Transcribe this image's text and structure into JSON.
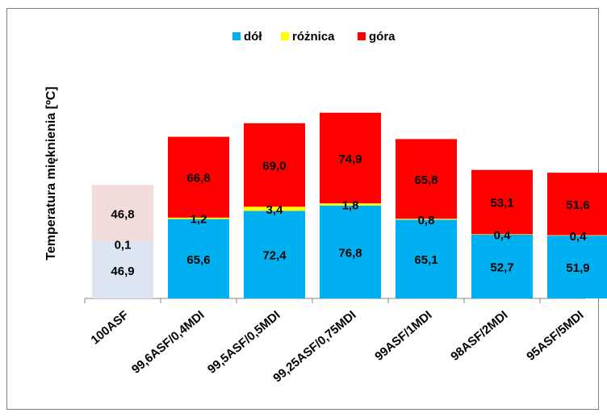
{
  "chart_data": {
    "type": "bar",
    "stacked": true,
    "ylabel": "Temperatura mięknienia [ºC]",
    "xlabel": "",
    "legend_position": "top",
    "grid": false,
    "categories": [
      "100ASF",
      "99,6ASF/0,4MDI",
      "99,5ASF/0,5MDI",
      "99,25ASF/0,75MDI",
      "99ASF/1MDI",
      "98ASF/2MDI",
      "95ASF/5MDI"
    ],
    "series": [
      {
        "name": "dół",
        "color": "#00b0f0",
        "values": [
          46.9,
          65.6,
          72.4,
          76.8,
          65.1,
          52.7,
          51.9
        ],
        "labels": [
          "46,9",
          "65,6",
          "72,4",
          "76,8",
          "65,1",
          "52,7",
          "51,9"
        ]
      },
      {
        "name": "różnica",
        "color": "#ffff00",
        "values": [
          0.1,
          1.2,
          3.4,
          1.8,
          0.8,
          0.4,
          0.4
        ],
        "labels": [
          "0,1",
          "1,2",
          "3,4",
          "1,8",
          "0,8",
          "0,4",
          "0,4"
        ]
      },
      {
        "name": "góra",
        "color": "#ff0000",
        "values": [
          46.8,
          66.8,
          69.0,
          74.9,
          65.8,
          53.1,
          51.6
        ],
        "labels": [
          "46,8",
          "66,8",
          "69,0",
          "74,9",
          "65,8",
          "53,1",
          "51,6"
        ]
      }
    ],
    "faded_categories": [
      0
    ],
    "faded_colors": {
      "dół": "#dce6f2",
      "różnica": "#dce6f2",
      "góra": "#f2dcdb"
    }
  }
}
